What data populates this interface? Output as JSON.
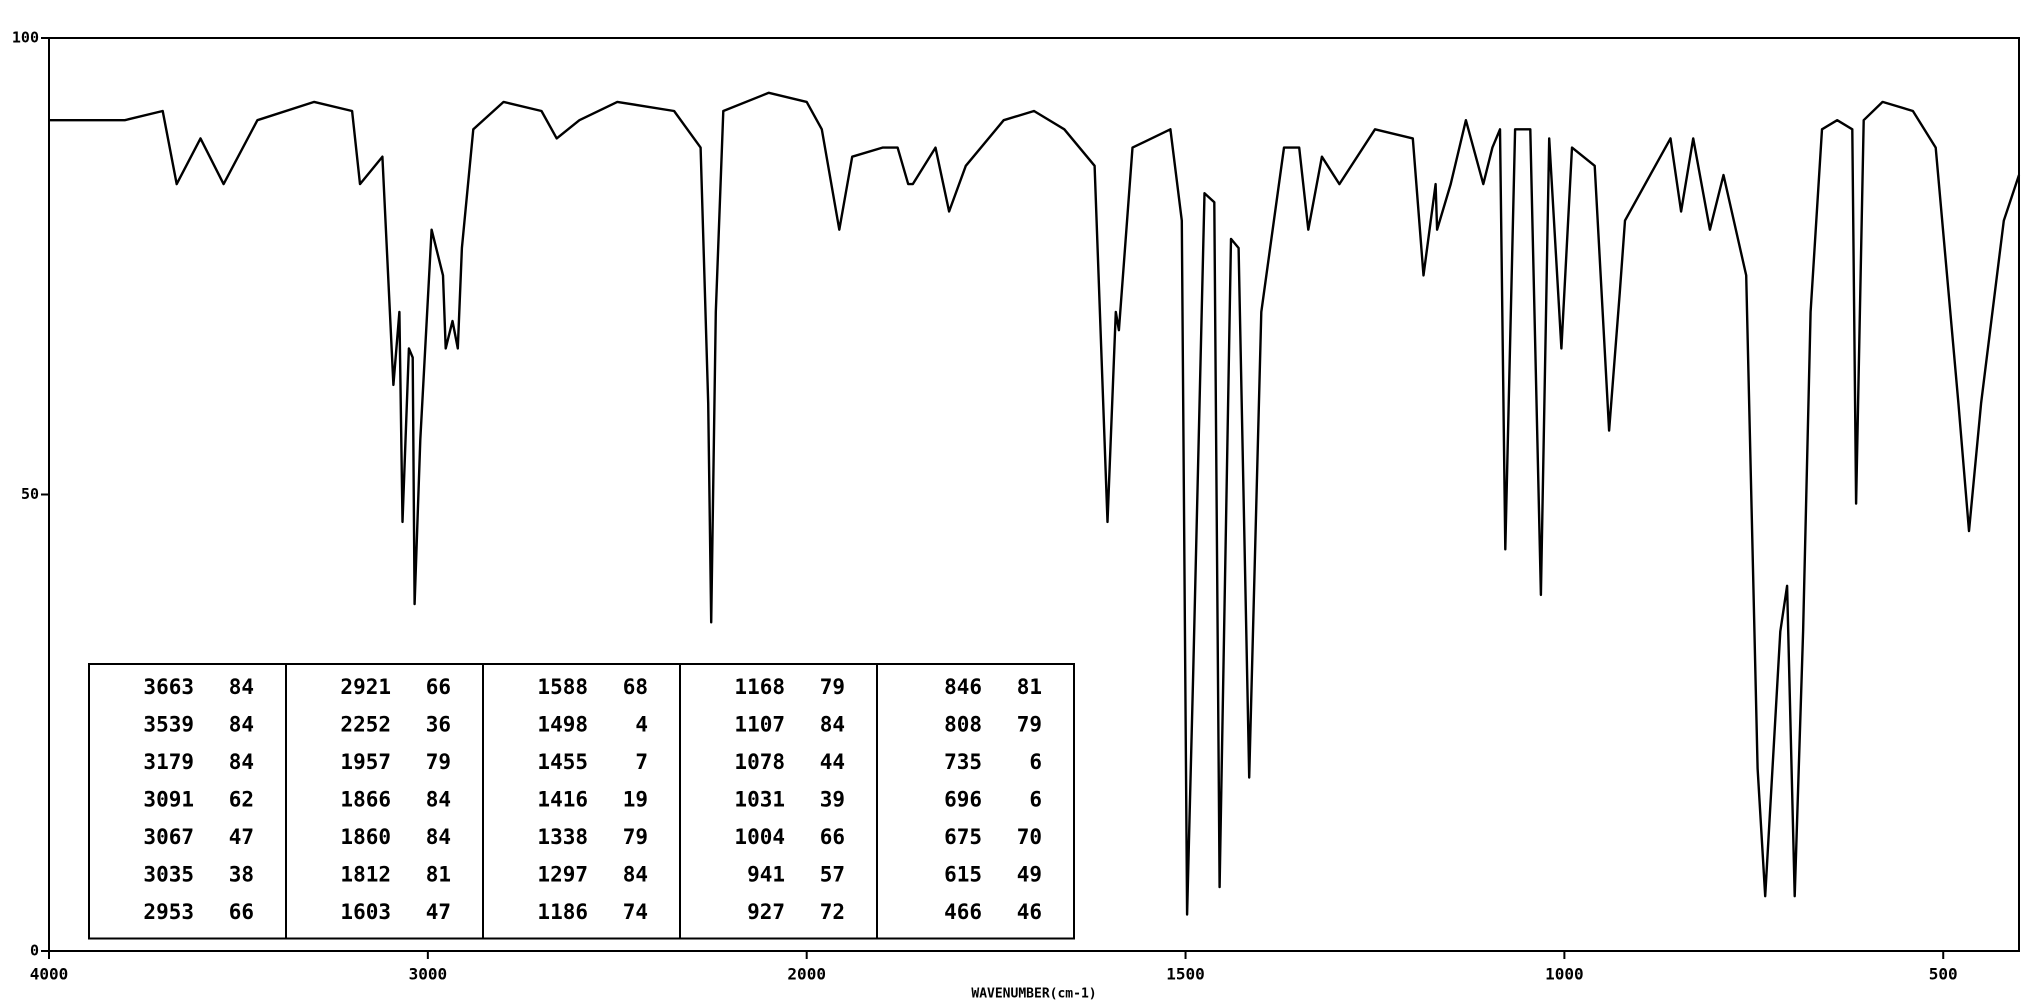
{
  "chart_data": {
    "type": "line",
    "x_label": "WAVENUMBER(cm-1)",
    "color": "#000000",
    "xlim": [
      4000,
      400
    ],
    "xticks": [
      4000,
      3000,
      2000,
      1500,
      1000,
      500
    ],
    "x_scale_break": 2000,
    "x_scale_factor": 2,
    "ylim": [
      0,
      100
    ],
    "yticks": [
      0,
      50,
      100
    ],
    "x": [
      4000,
      3800,
      3700,
      3663,
      3600,
      3539,
      3450,
      3300,
      3200,
      3179,
      3120,
      3091,
      3075,
      3067,
      3050,
      3040,
      3035,
      3020,
      2990,
      2960,
      2953,
      2935,
      2921,
      2910,
      2880,
      2800,
      2700,
      2660,
      2600,
      2500,
      2350,
      2280,
      2260,
      2252,
      2240,
      2220,
      2100,
      2000,
      1980,
      1957,
      1940,
      1900,
      1880,
      1866,
      1860,
      1830,
      1812,
      1790,
      1740,
      1700,
      1660,
      1620,
      1603,
      1592,
      1588,
      1570,
      1520,
      1505,
      1498,
      1490,
      1475,
      1462,
      1455,
      1440,
      1430,
      1416,
      1400,
      1370,
      1350,
      1338,
      1320,
      1297,
      1250,
      1200,
      1186,
      1170,
      1168,
      1150,
      1130,
      1107,
      1095,
      1085,
      1078,
      1065,
      1045,
      1031,
      1020,
      1004,
      990,
      960,
      941,
      927,
      920,
      880,
      860,
      846,
      830,
      808,
      790,
      760,
      745,
      735,
      715,
      706,
      696,
      685,
      675,
      660,
      640,
      620,
      615,
      605,
      580,
      540,
      510,
      480,
      466,
      450,
      420,
      400
    ],
    "values": [
      91,
      91,
      92,
      84,
      89,
      84,
      91,
      93,
      92,
      84,
      87,
      62,
      70,
      47,
      66,
      65,
      38,
      56,
      79,
      74,
      66,
      69,
      66,
      77,
      90,
      93,
      92,
      89,
      91,
      93,
      92,
      88,
      60,
      36,
      70,
      92,
      94,
      93,
      90,
      79,
      87,
      88,
      88,
      84,
      84,
      88,
      81,
      86,
      91,
      92,
      90,
      86,
      47,
      70,
      68,
      88,
      90,
      80,
      4,
      30,
      83,
      82,
      7,
      78,
      77,
      19,
      70,
      88,
      88,
      79,
      87,
      84,
      90,
      89,
      74,
      84,
      79,
      84,
      91,
      84,
      88,
      90,
      44,
      90,
      90,
      39,
      89,
      66,
      88,
      86,
      57,
      72,
      80,
      86,
      89,
      81,
      89,
      79,
      85,
      74,
      20,
      6,
      35,
      40,
      6,
      35,
      70,
      90,
      91,
      90,
      49,
      91,
      93,
      92,
      88,
      60,
      46,
      60,
      80,
      85
    ],
    "peak_table": [
      [
        [
          3663,
          84
        ],
        [
          3539,
          84
        ],
        [
          3179,
          84
        ],
        [
          3091,
          62
        ],
        [
          3067,
          47
        ],
        [
          3035,
          38
        ],
        [
          2953,
          66
        ]
      ],
      [
        [
          2921,
          66
        ],
        [
          2252,
          36
        ],
        [
          1957,
          79
        ],
        [
          1866,
          84
        ],
        [
          1860,
          84
        ],
        [
          1812,
          81
        ],
        [
          1603,
          47
        ]
      ],
      [
        [
          1588,
          68
        ],
        [
          1498,
          4
        ],
        [
          1455,
          7
        ],
        [
          1416,
          19
        ],
        [
          1338,
          79
        ],
        [
          1297,
          84
        ],
        [
          1186,
          74
        ]
      ],
      [
        [
          1168,
          79
        ],
        [
          1107,
          84
        ],
        [
          1078,
          44
        ],
        [
          1031,
          39
        ],
        [
          1004,
          66
        ],
        [
          941,
          57
        ],
        [
          927,
          72
        ]
      ],
      [
        [
          846,
          81
        ],
        [
          808,
          79
        ],
        [
          735,
          6
        ],
        [
          696,
          6
        ],
        [
          675,
          70
        ],
        [
          615,
          49
        ],
        [
          466,
          46
        ]
      ]
    ]
  }
}
